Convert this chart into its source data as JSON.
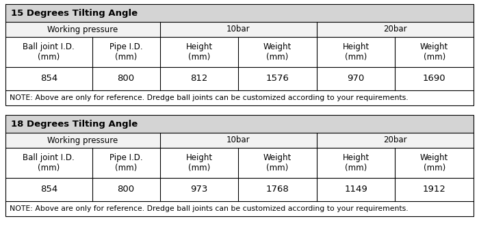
{
  "table1_title": "15 Degrees Tilting Angle",
  "table2_title": "18 Degrees Tilting Angle",
  "header_row2": [
    "Ball joint I.D.\n(mm)",
    "Pipe I.D.\n(mm)",
    "Height\n(mm)",
    "Weight\n(mm)",
    "Height\n(mm)",
    "Weight\n(mm)"
  ],
  "data_row1": [
    "854",
    "800",
    "812",
    "1576",
    "970",
    "1690"
  ],
  "data_row2": [
    "854",
    "800",
    "973",
    "1768",
    "1149",
    "1912"
  ],
  "note": "NOTE: Above are only for reference. Dredge ball joints can be customized according to your requirements.",
  "title_bg": "#d4d4d4",
  "header1_bg": "#f2f2f2",
  "header2_bg": "#ffffff",
  "data_bg": "#ffffff",
  "note_bg": "#ffffff",
  "border_color": "#000000",
  "title_fontsize": 9.5,
  "header_fontsize": 8.5,
  "data_fontsize": 9.5,
  "note_fontsize": 7.8
}
